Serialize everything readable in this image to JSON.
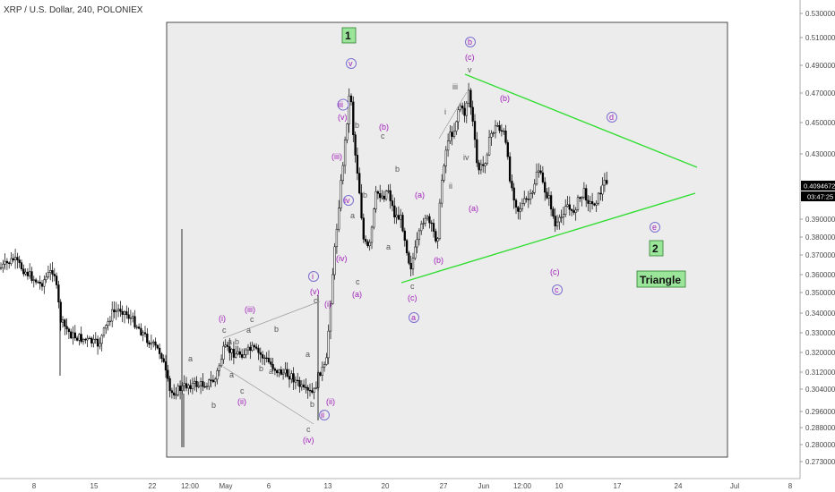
{
  "header": {
    "title": "XRP / U.S. Dollar, 240, POLONIEX"
  },
  "price_axis": {
    "ticks": [
      "0.53000000",
      "0.51000000",
      "0.49000000",
      "0.47000000",
      "0.45000000",
      "0.43000000",
      "0.39000000",
      "0.38000000",
      "0.37000000",
      "0.36000000",
      "0.35000000",
      "0.34000000",
      "0.33000000",
      "0.32000000",
      "0.31200000",
      "0.30400000",
      "0.29600000",
      "0.28800000",
      "0.28000000",
      "0.27300000"
    ],
    "last_price": "0.40946726",
    "countdown": "03:47:25",
    "last_color": "#000000"
  },
  "time_axis": {
    "ticks": [
      "8",
      "15",
      "22",
      "12:00",
      "May",
      "6",
      "13",
      "20",
      "27",
      "Jun",
      "12:00",
      "10",
      "17",
      "24",
      "Jul",
      "8"
    ]
  },
  "annotations": {
    "wave_1": "1",
    "wave_2": "2",
    "triangle": "Triangle",
    "triangle_color": "#33dd33",
    "labels": {
      "a1": "a",
      "b1": "b",
      "c1": "c",
      "a2": "a",
      "b2": "b",
      "c2": "c",
      "i_open": "(i)",
      "ii_open": "(ii)",
      "iii_open": "(iii)",
      "iv_open": "(iv)",
      "v_open": "(v)",
      "c3": "c",
      "a3": "a",
      "b3": "b",
      "c4": "c",
      "i_circ": "i",
      "ii_circ": "ii",
      "iii_circ": "iii",
      "iv_circ": "iv",
      "v_circ": "v",
      "v_top": "v",
      "iii_top": "(iii)",
      "v_top2": "(v)",
      "iii_mid": "(iii)",
      "iv_mid": "(iv)",
      "iv_low": "(iv)",
      "i_mid": "(i)",
      "ii_mid": "(ii)",
      "b4": "b",
      "a4": "a",
      "c5": "c",
      "a_paren1": "(a)",
      "b_paren1": "(b)",
      "c_paren1": "(c)",
      "c6": "c",
      "a5": "a",
      "b5": "b",
      "a_circ1": "a",
      "c_circ1": "c",
      "a_paren2": "(a)",
      "b_paren2": "(b)",
      "c_paren2": "(c)",
      "i2": "i",
      "iii2": "iii",
      "iv2": "iv",
      "ii2": "ii",
      "v2": "v",
      "b_circ": "b",
      "c_paren_top": "(c)",
      "b_paren_top": "(b)",
      "d_circ": "d",
      "a_paren3": "(a)",
      "e_circ": "e",
      "c_paren3": "(c)",
      "c_circ2": "c"
    }
  },
  "chart_data": {
    "type": "candlestick",
    "title": "XRP / U.S. Dollar, 240, POLONIEX",
    "price_range": [
      0.273,
      0.53
    ],
    "candle_up_color": "#000000",
    "candle_down_color": "#000000"
  }
}
